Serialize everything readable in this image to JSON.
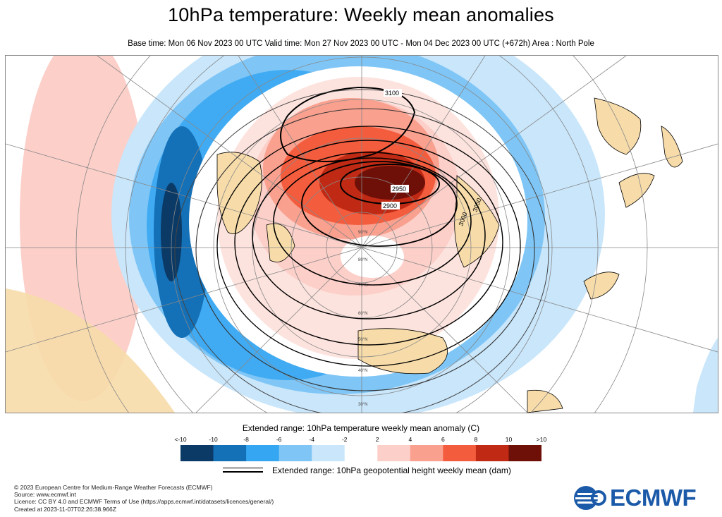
{
  "title": "10hPa temperature: Weekly mean anomalies",
  "subtitle": "Base time: Mon 06 Nov 2023 00 UTC Valid time: Mon 27 Nov 2023 00 UTC - Mon 04 Dec 2023 00 UTC (+672h) Area : North Pole",
  "map": {
    "contour_labels": [
      "3100",
      "2950",
      "2900",
      "3050",
      "3000"
    ],
    "latitude_labels": [
      "90°N",
      "80°N",
      "70°N",
      "60°N",
      "50°N",
      "40°N",
      "30°N"
    ]
  },
  "legend": {
    "title": "Extended range: 10hPa temperature weekly mean anomaly (C)",
    "ticks": [
      "<-10",
      "-10",
      "-8",
      "-6",
      "-4",
      "-2",
      "2",
      "4",
      "6",
      "8",
      "10",
      ">10"
    ],
    "colors": [
      "#0b3a66",
      "#1470b7",
      "#35a6f2",
      "#7fc6f6",
      "#c9e6fb",
      "#ffffff",
      "#fccfc9",
      "#f9a08f",
      "#f45c3e",
      "#c02a14",
      "#6e1008"
    ]
  },
  "contour_legend": {
    "label": "Extended range: 10hPa geopotential height weekly mean (dam)"
  },
  "footer": {
    "lines": [
      "© 2023 European Centre for Medium-Range Weather Forecasts (ECMWF)",
      "Source: www.ecmwf.int",
      "Licence: CC BY 4.0 and ECMWF Terms of Use (https://apps.ecmwf.int/datasets/licences/general/)",
      "Created at 2023-11-07T02:26:38.966Z"
    ]
  },
  "logo": {
    "text": "ECMWF",
    "color": "#1b5aa8"
  }
}
